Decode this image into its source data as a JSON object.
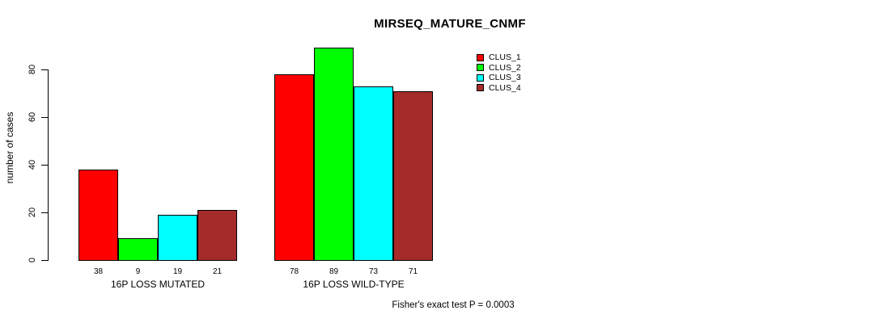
{
  "chart_data": {
    "type": "bar",
    "title": "MIRSEQ_MATURE_CNMF",
    "ylabel": "number of cases",
    "xlabel": "",
    "categories": [
      "16P LOSS MUTATED",
      "16P LOSS WILD-TYPE"
    ],
    "series": [
      {
        "name": "CLUS_1",
        "color": "#FF0000",
        "values": [
          38,
          78
        ]
      },
      {
        "name": "CLUS_2",
        "color": "#00FF00",
        "values": [
          9,
          89
        ]
      },
      {
        "name": "CLUS_3",
        "color": "#00FFFF",
        "values": [
          19,
          73
        ]
      },
      {
        "name": "CLUS_4",
        "color": "#A52A2A",
        "values": [
          21,
          71
        ]
      }
    ],
    "y_ticks": [
      0,
      20,
      40,
      60,
      80
    ],
    "ylim": [
      0,
      89
    ],
    "grid": false,
    "legend_position": "top-right",
    "bar_value_labels": true,
    "annotation": "Fisher's exact test P = 0.0003"
  },
  "colors": {
    "background": "#FFFFFF",
    "axis": "#000000",
    "text": "#000000"
  }
}
